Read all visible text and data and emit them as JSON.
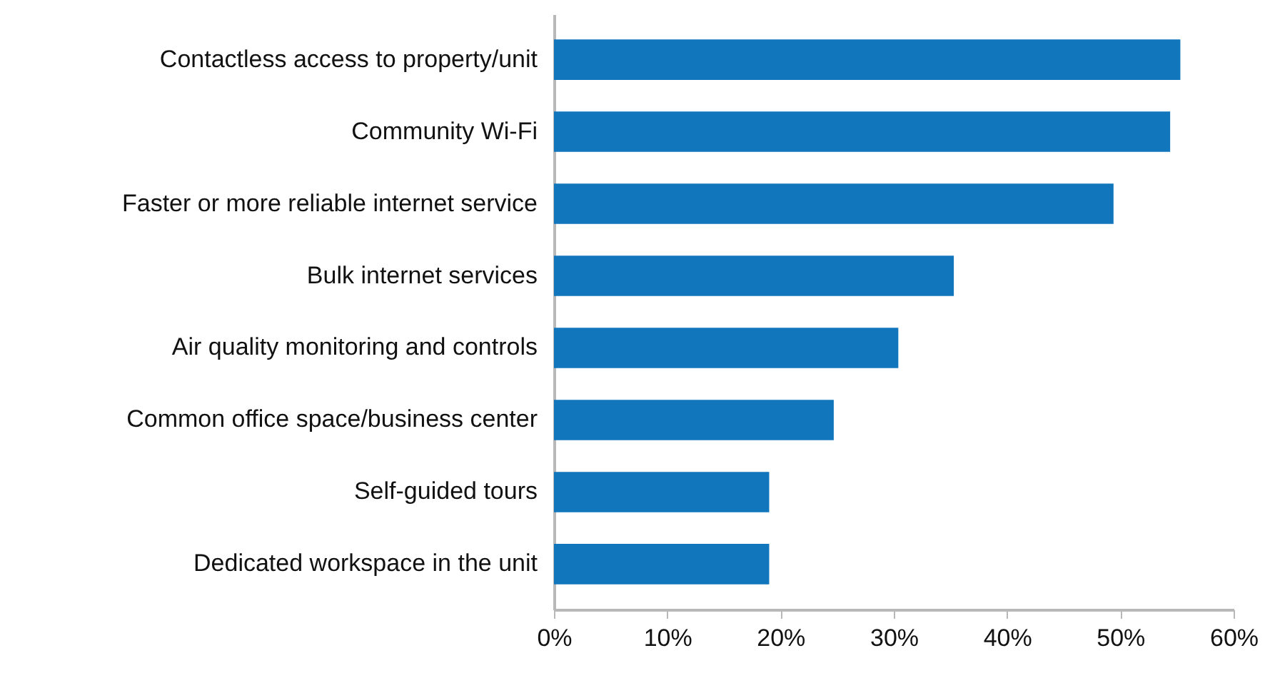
{
  "chart_data": {
    "type": "bar",
    "orientation": "horizontal",
    "categories": [
      "Contactless access to property/unit",
      "Community Wi-Fi",
      "Faster or more reliable internet service",
      "Bulk internet services",
      "Air quality monitoring and controls",
      "Common office space/business center",
      "Self-guided tours",
      "Dedicated workspace in the unit"
    ],
    "values": [
      55.3,
      54.4,
      49.4,
      35.3,
      30.4,
      24.7,
      19.0,
      19.0
    ],
    "color": "#1176bc",
    "xlim": [
      0,
      60
    ],
    "xticks": [
      {
        "value": 0,
        "label": "0%"
      },
      {
        "value": 10,
        "label": "10%"
      },
      {
        "value": 20,
        "label": "20%"
      },
      {
        "value": 30,
        "label": "30%"
      },
      {
        "value": 40,
        "label": "40%"
      },
      {
        "value": 50,
        "label": "50%"
      },
      {
        "value": 60,
        "label": "60%"
      }
    ],
    "grid": false
  }
}
